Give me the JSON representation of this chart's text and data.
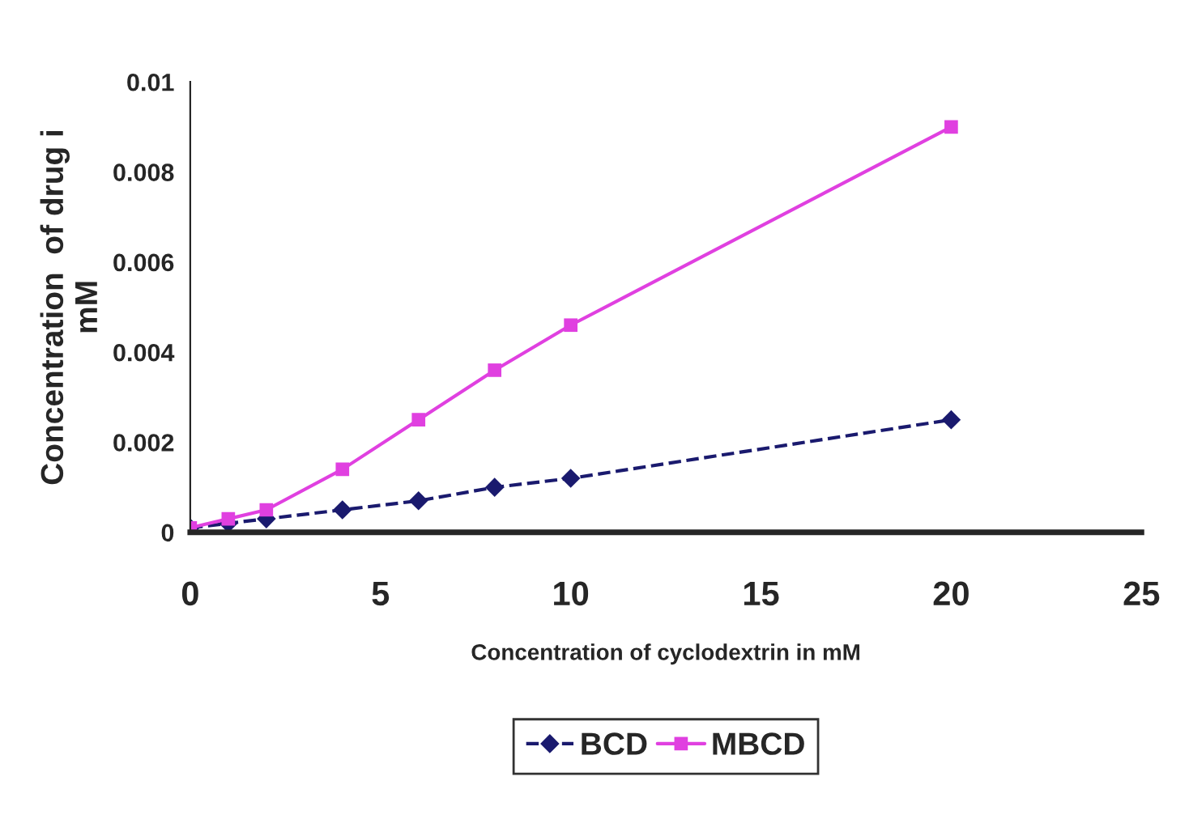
{
  "chart_data": {
    "type": "line",
    "xlabel": "Concentration of cyclodextrin in mM",
    "ylabel": "Concentration  of drug i\nmM",
    "x": [
      0,
      1,
      2,
      4,
      6,
      8,
      10,
      20
    ],
    "series": [
      {
        "name": "BCD",
        "color": "#1a1a6e",
        "values": [
          0.0001,
          0.0002,
          0.0003,
          0.0005,
          0.0007,
          0.001,
          0.0012,
          0.0025
        ],
        "marker": "diamond",
        "line_style": "dashed"
      },
      {
        "name": "MBCD",
        "color": "#e040e0",
        "values": [
          0.0001,
          0.0003,
          0.0005,
          0.0014,
          0.0025,
          0.0036,
          0.0046,
          0.009
        ],
        "marker": "square",
        "line_style": "solid"
      }
    ],
    "xlim": [
      0,
      25
    ],
    "xticks": [
      0,
      5,
      10,
      15,
      20,
      25
    ],
    "ylim": [
      0,
      0.01
    ],
    "yticks": [
      0,
      0.002,
      0.004,
      0.006,
      0.008,
      0.01
    ],
    "grid": false,
    "legend": "bottom"
  }
}
